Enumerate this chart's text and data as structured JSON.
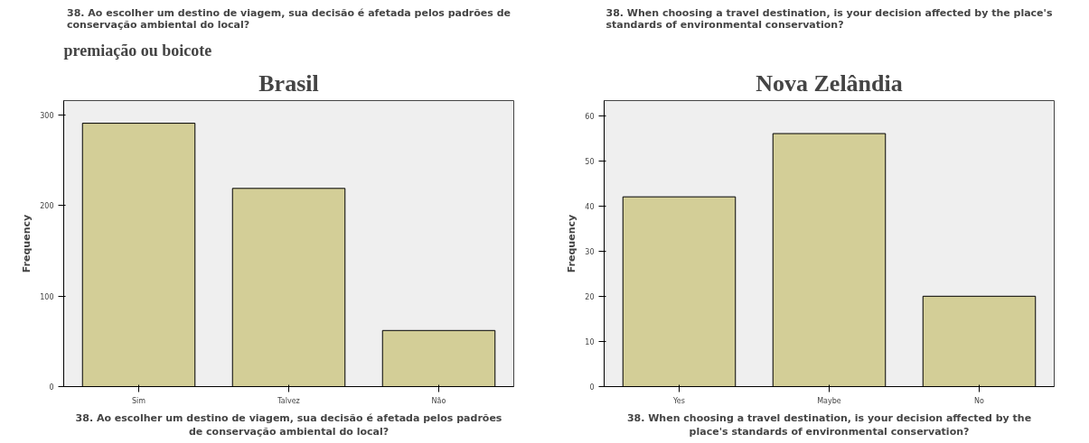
{
  "chart_data": [
    {
      "type": "bar",
      "title": "Brasil",
      "subtitle": "38. Ao escolher um destino de viagem, sua decisão é afetada pelos padrões de conservação ambiental do local?",
      "xlabel": "38. Ao escolher um destino de viagem, sua decisão é afetada pelos padrões de conservação ambiental do local?",
      "ylabel": "Frequency",
      "categories": [
        "Sim",
        "Talvez",
        "Não"
      ],
      "values": [
        291,
        219,
        62
      ],
      "color": "#d3ce97",
      "ylim": [
        0,
        316
      ],
      "yticks": [
        0,
        100,
        200,
        300
      ],
      "grid": false,
      "annotations": [
        "premiação ou boicote"
      ]
    },
    {
      "type": "bar",
      "title": "Nova Zelândia",
      "subtitle": "38. When choosing a travel destination, is your decision affected by the place's standards of environmental conservation?",
      "xlabel": "38. When choosing a travel destination, is your decision affected by the place's standards of environmental conservation?",
      "ylabel": "Frequency",
      "categories": [
        "Yes",
        "Maybe",
        "No"
      ],
      "values": [
        42,
        56,
        20
      ],
      "color": "#d3ce97",
      "ylim": [
        0,
        63.3
      ],
      "yticks": [
        0,
        10,
        20,
        30,
        40,
        50,
        60
      ],
      "grid": false
    }
  ]
}
